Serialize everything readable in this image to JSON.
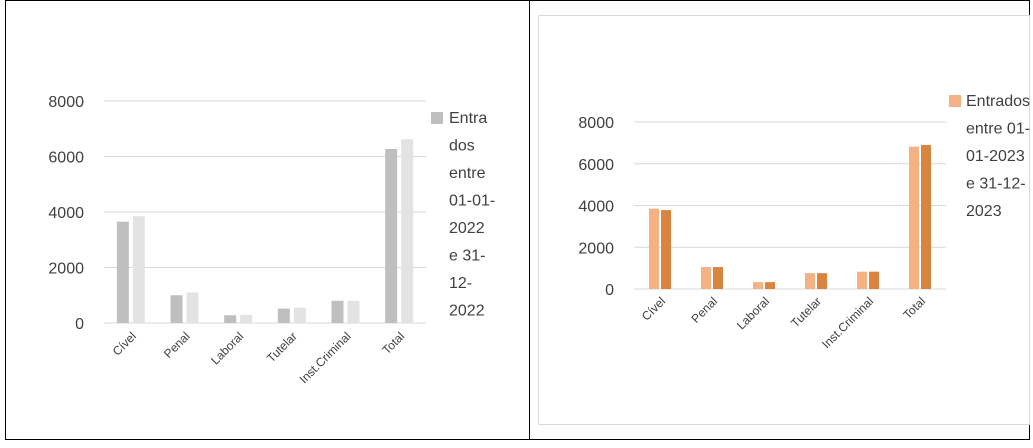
{
  "chart_data": [
    {
      "type": "bar",
      "categories": [
        "Cível",
        "Penal",
        "Laboral",
        "Tutelar",
        "Inst.Criminal",
        "Total"
      ],
      "series": [
        {
          "name": "Entrados entre 01-01-2022 e 31-12-2022",
          "values": [
            3650,
            1000,
            280,
            520,
            800,
            6270
          ],
          "color": "#bfbfbf"
        },
        {
          "values": [
            3850,
            1100,
            290,
            550,
            800,
            6620
          ],
          "color": "#e3e3e3"
        }
      ],
      "legend_lines": [
        "Entra",
        "dos",
        "entre",
        "01-01-",
        "2022",
        "e 31-",
        "12-",
        "2022"
      ],
      "yticks": [
        0,
        2000,
        4000,
        6000,
        8000
      ],
      "ylim": [
        0,
        8000
      ],
      "legend": "right"
    },
    {
      "type": "bar",
      "categories": [
        "Cível",
        "Penal",
        "Laboral",
        "Tutelar",
        "Inst.Criminal",
        "Total"
      ],
      "series": [
        {
          "name": "Entrados entre 01-01-2023 e 31-12-2023",
          "values": [
            3850,
            1050,
            330,
            760,
            830,
            6820
          ],
          "color": "#f4b183"
        },
        {
          "values": [
            3780,
            1050,
            330,
            760,
            830,
            6900
          ],
          "color": "#d9843f"
        }
      ],
      "legend_lines": [
        "Entrados",
        "entre 01-",
        "01-2023",
        "e 31-12-",
        "2023"
      ],
      "yticks": [
        0,
        2000,
        4000,
        6000,
        8000
      ],
      "ylim": [
        0,
        8000
      ],
      "legend": "right"
    }
  ]
}
